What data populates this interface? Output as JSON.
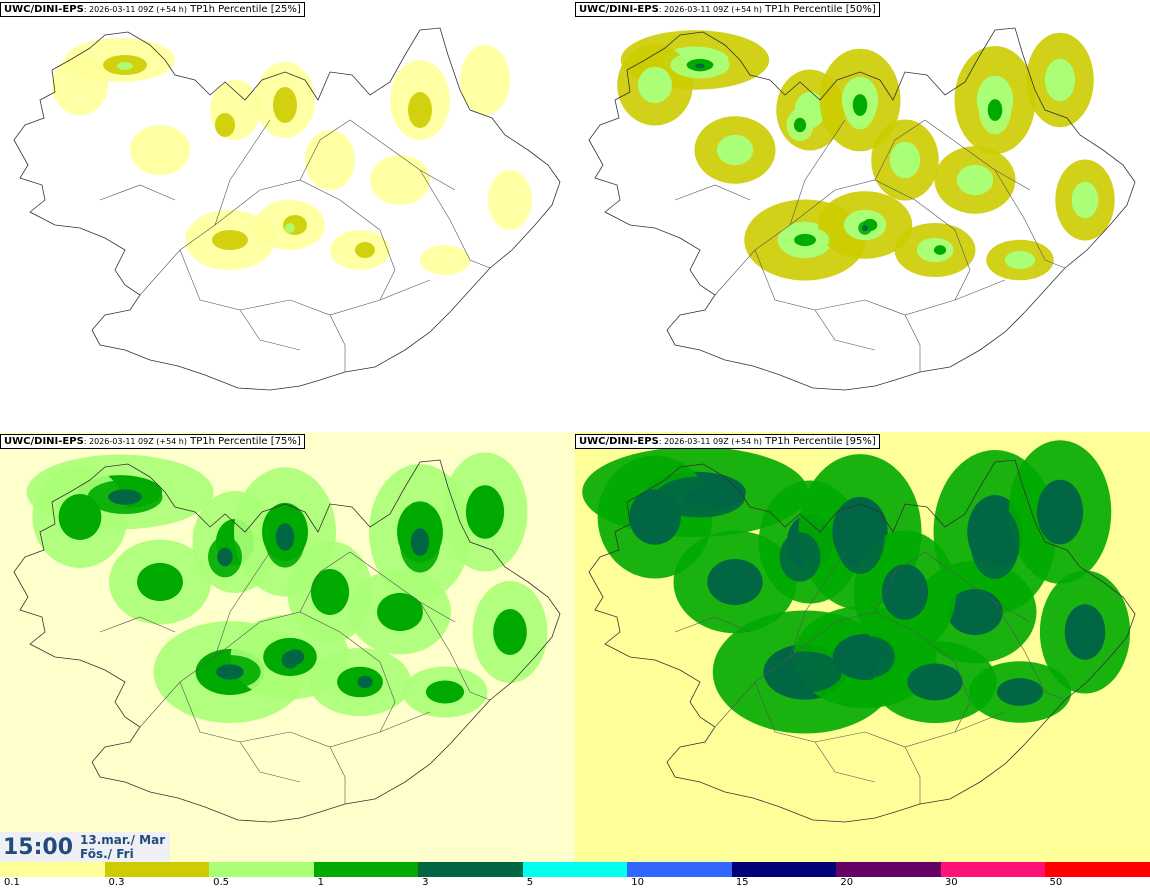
{
  "panels": [
    {
      "model": "UWC/DINI-EPS",
      "run": ": 2026-03-11 09Z (+54 h)",
      "field": " TP1h Percentile [25%]",
      "level": 0
    },
    {
      "model": "UWC/DINI-EPS",
      "run": ": 2026-03-11 09Z (+54 h)",
      "field": " TP1h Percentile [50%]",
      "level": 1
    },
    {
      "model": "UWC/DINI-EPS",
      "run": ": 2026-03-11 09Z (+54 h)",
      "field": " TP1h Percentile [75%]",
      "level": 2
    },
    {
      "model": "UWC/DINI-EPS",
      "run": ": 2026-03-11 09Z (+54 h)",
      "field": " TP1h Percentile [95%]",
      "level": 3
    }
  ],
  "valid_time": {
    "time": "15:00",
    "date_line1": "13.mar./ Mar",
    "date_line2": "Fös./ Fri"
  },
  "colorbar": {
    "colors": [
      "#ffff99",
      "#cccc00",
      "#aaff77",
      "#00aa00",
      "#006644",
      "#00ffee",
      "#3366ff",
      "#000077",
      "#660066",
      "#ff1177",
      "#ff0000"
    ],
    "labels": [
      "0.1",
      "0.3",
      "0.5",
      "1",
      "3",
      "5",
      "10",
      "15",
      "20",
      "30",
      "50"
    ]
  }
}
